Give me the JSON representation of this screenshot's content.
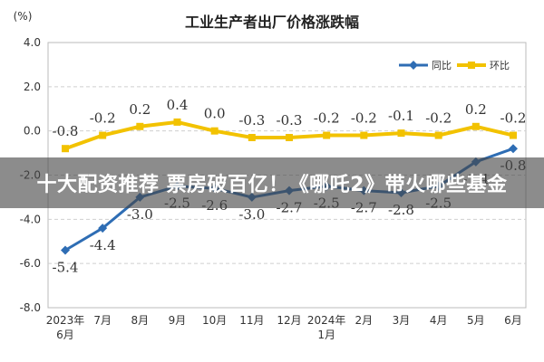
{
  "overlay": {
    "text": "十大配资推荐 票房破百亿！《哪吒2》带火哪些基金"
  },
  "chart_data": {
    "type": "line",
    "title": "工业生产者出厂价格涨跌幅",
    "ylabel": "(%)",
    "xlabel": "",
    "categories": [
      {
        "line1": "2023年",
        "line2": "6月"
      },
      {
        "line1": "7月",
        "line2": ""
      },
      {
        "line1": "8月",
        "line2": ""
      },
      {
        "line1": "9月",
        "line2": ""
      },
      {
        "line1": "10月",
        "line2": ""
      },
      {
        "line1": "11月",
        "line2": ""
      },
      {
        "line1": "12月",
        "line2": ""
      },
      {
        "line1": "2024年",
        "line2": "1月"
      },
      {
        "line1": "2月",
        "line2": ""
      },
      {
        "line1": "3月",
        "line2": ""
      },
      {
        "line1": "4月",
        "line2": ""
      },
      {
        "line1": "5月",
        "line2": ""
      },
      {
        "line1": "6月",
        "line2": ""
      }
    ],
    "ylim": [
      -8,
      4
    ],
    "yticks": [
      "4.0",
      "2.0",
      "0.0",
      "-2.0",
      "-4.0",
      "-6.0",
      "-8.0"
    ],
    "ytick_values": [
      4,
      2,
      0,
      -2,
      -4,
      -6,
      -8
    ],
    "grid": true,
    "legend_position": "top-right",
    "series": [
      {
        "name": "同比",
        "color": "#2e6db4",
        "values": [
          -5.4,
          -4.4,
          -3.0,
          -2.5,
          -2.6,
          -3.0,
          -2.7,
          -2.5,
          -2.7,
          -2.8,
          -2.5,
          -1.4,
          -0.8
        ],
        "labels": [
          "-5.4",
          "-4.4",
          "-3.0",
          "-2.5",
          "-2.6",
          "-3.0",
          "-2.7",
          "-2.5",
          "-2.7",
          "-2.8",
          "-2.5",
          "-1.4",
          "-0.8"
        ]
      },
      {
        "name": "环比",
        "color": "#f2c200",
        "values": [
          -0.8,
          -0.2,
          0.2,
          0.4,
          0.0,
          -0.3,
          -0.3,
          -0.2,
          -0.2,
          -0.1,
          -0.2,
          0.2,
          -0.2
        ],
        "labels": [
          "-0.8",
          "-0.2",
          "0.2",
          "0.4",
          "0.0",
          "-0.3",
          "-0.3",
          "-0.2",
          "-0.2",
          "-0.1",
          "-0.2",
          "0.2",
          "-0.2"
        ]
      }
    ]
  }
}
